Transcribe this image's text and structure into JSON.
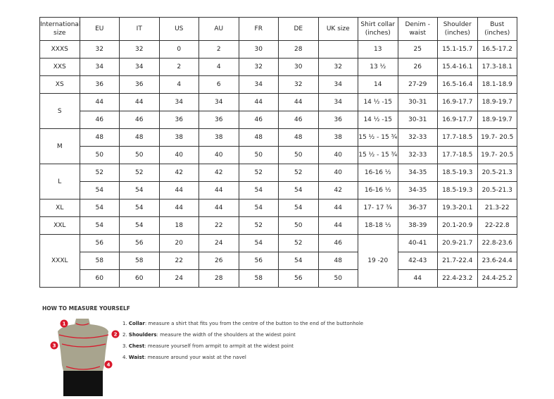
{
  "headers": [
    "International size",
    "EU",
    "IT",
    "US",
    "AU",
    "FR",
    "DE",
    "UK size",
    "Shirt collar (inches)",
    "Denim - waist",
    "Shoulder (inches)",
    "Bust (inches)"
  ],
  "groups": [
    {
      "size": "XXXS",
      "rows": [
        [
          "32",
          "32",
          "0",
          "2",
          "30",
          "28",
          "",
          "13",
          "25",
          "15.1-15.7",
          "16.5-17.2"
        ]
      ]
    },
    {
      "size": "XXS",
      "rows": [
        [
          "34",
          "34",
          "2",
          "4",
          "32",
          "30",
          "32",
          "13 ½",
          "26",
          "15.4-16.1",
          "17.3-18.1"
        ]
      ]
    },
    {
      "size": "XS",
      "rows": [
        [
          "36",
          "36",
          "4",
          "6",
          "34",
          "32",
          "34",
          "14",
          "27-29",
          "16.5-16.4",
          "18.1-18.9"
        ]
      ]
    },
    {
      "size": "S",
      "rows": [
        [
          "44",
          "44",
          "34",
          "34",
          "44",
          "44",
          "34",
          "14 ½ -15",
          "30-31",
          "16.9-17.7",
          "18.9-19.7"
        ],
        [
          "46",
          "46",
          "36",
          "36",
          "46",
          "46",
          "36",
          "14 ½ -15",
          "30-31",
          "16.9-17.7",
          "18.9-19.7"
        ]
      ]
    },
    {
      "size": "M",
      "rows": [
        [
          "48",
          "48",
          "38",
          "38",
          "48",
          "48",
          "38",
          "15 ½ - 15 ¾",
          "32-33",
          "17.7-18.5",
          "19.7- 20.5"
        ],
        [
          "50",
          "50",
          "40",
          "40",
          "50",
          "50",
          "40",
          "15 ½ - 15 ¾",
          "32-33",
          "17.7-18.5",
          "19.7- 20.5"
        ]
      ]
    },
    {
      "size": "L",
      "rows": [
        [
          "52",
          "52",
          "42",
          "42",
          "52",
          "52",
          "40",
          "16-16 ½",
          "34-35",
          "18.5-19.3",
          "20.5-21.3"
        ],
        [
          "54",
          "54",
          "44",
          "44",
          "54",
          "54",
          "42",
          "16-16 ½",
          "34-35",
          "18.5-19.3",
          "20.5-21.3"
        ]
      ]
    },
    {
      "size": "XL",
      "rows": [
        [
          "54",
          "54",
          "44",
          "44",
          "54",
          "54",
          "44",
          "17- 17 ¾",
          "36-37",
          "19.3-20.1",
          "21.3-22"
        ]
      ]
    },
    {
      "size": "XXL",
      "rows": [
        [
          "54",
          "54",
          "18",
          "22",
          "52",
          "50",
          "44",
          "18-18 ½",
          "38-39",
          "20.1-20.9",
          "22-22.8"
        ]
      ]
    },
    {
      "size": "XXXL",
      "collar": "19 -20",
      "rows": [
        [
          "56",
          "56",
          "20",
          "24",
          "54",
          "52",
          "46",
          null,
          "40-41",
          "20.9-21.7",
          "22.8-23.6"
        ],
        [
          "58",
          "58",
          "22",
          "26",
          "56",
          "54",
          "48",
          null,
          "42-43",
          "21.7-22.4",
          "23.6-24.4"
        ],
        [
          "60",
          "60",
          "24",
          "28",
          "58",
          "56",
          "50",
          null,
          "44",
          "22.4-23.2",
          "24.4-25.2"
        ]
      ]
    }
  ],
  "guide": {
    "title": "HOW TO MEASURE YOURSELF",
    "markers": [
      "1",
      "2",
      "3",
      "4"
    ],
    "steps": [
      {
        "num": "1.",
        "term": "Collar",
        "text": ": measure a shirt that fits you from the centre of the button to the end of the buttonhole"
      },
      {
        "num": "2.",
        "term": "Shoulders",
        "text": ": measure the width of the shoulders at the widest point"
      },
      {
        "num": "3.",
        "term": "Chest",
        "text": ": measure yourself from armpit to armpit at the widest point"
      },
      {
        "num": "4.",
        "term": "Waist",
        "text": ": measure around your waist at the navel"
      }
    ]
  },
  "colors": {
    "marker": "#d9182b",
    "torso": "#a8a48e",
    "shorts": "#111111"
  }
}
